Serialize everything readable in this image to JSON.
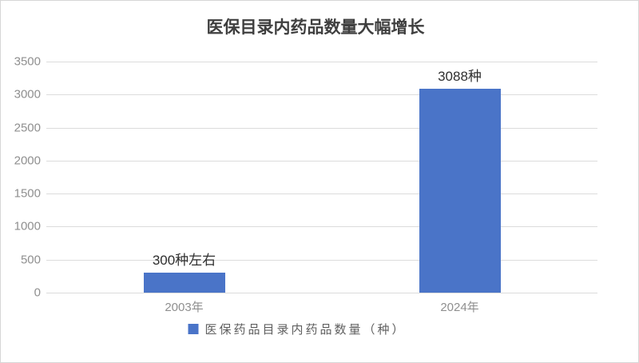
{
  "chart_data": {
    "type": "bar",
    "title": "医保目录内药品数量大幅增长",
    "categories": [
      "2003年",
      "2024年"
    ],
    "values": [
      300,
      3088
    ],
    "data_labels": [
      "300种左右",
      "3088种"
    ],
    "legend": [
      "医保药品目录内药品数量（种）"
    ],
    "legend_position": "bottom",
    "legend_marker": "blue-square-icon",
    "xlabel": "",
    "ylabel": "",
    "ylim": [
      0,
      3500
    ],
    "yticks": [
      0,
      500,
      1000,
      1500,
      2000,
      2500,
      3000,
      3500
    ],
    "grid": "horizontal",
    "colors": {
      "bar": "#4a74c8",
      "gridline": "#dcdcdc",
      "axis_label": "#8f8f8f",
      "title": "#3f3f3f",
      "data_label": "#2f2f2f",
      "legend_text": "#5f5f5f",
      "background": "#ffffff",
      "border": "#d6d6d6"
    }
  }
}
